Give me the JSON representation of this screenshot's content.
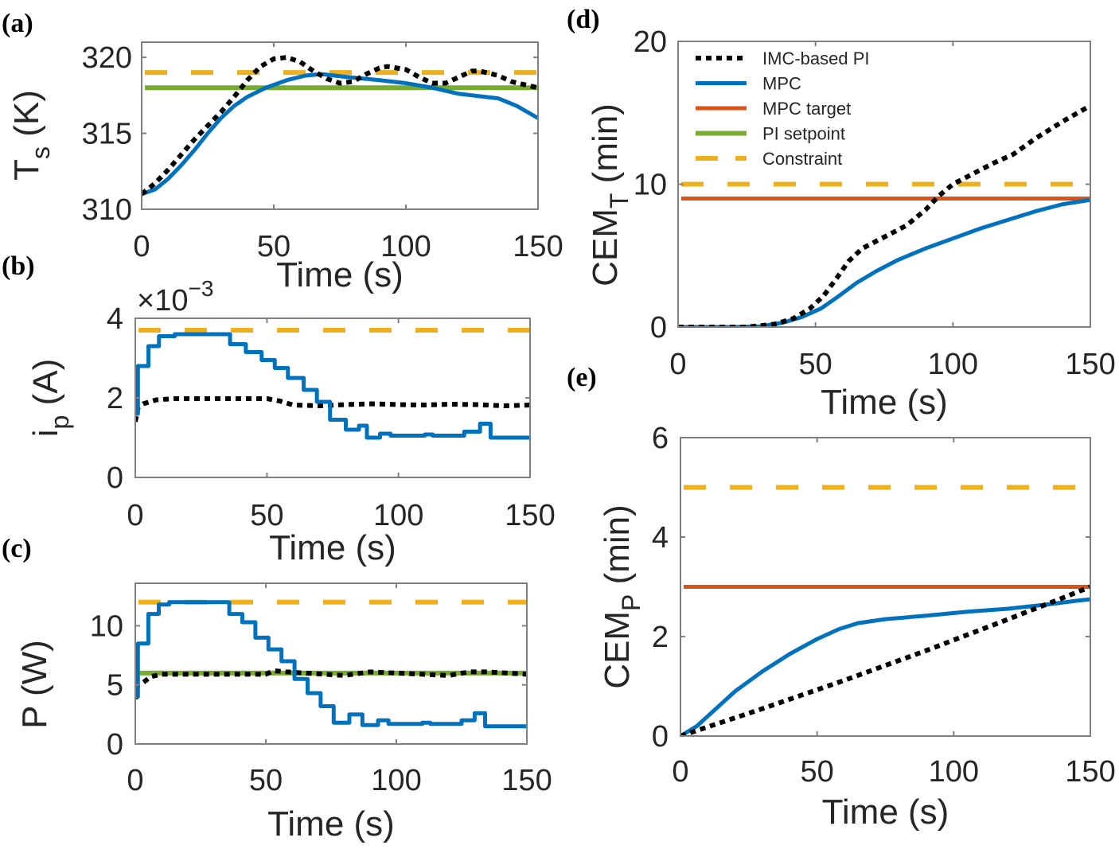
{
  "colors": {
    "mpc": "#0072BD",
    "target": "#D95319",
    "setpoint": "#77AC30",
    "constraint": "#EDB120",
    "pi": "#000000",
    "axis": "#808080"
  },
  "legend": [
    "IMC-based PI",
    "MPC",
    "MPC target",
    "PI setpoint",
    "Constraint"
  ],
  "chart_data": [
    {
      "id": "a",
      "panel_label": "(a)",
      "type": "line",
      "xlabel": "Time (s)",
      "ylabel": {
        "main": "T",
        "sub": "s",
        "rest": " (K)"
      },
      "xlim": [
        0,
        150
      ],
      "ylim": [
        310,
        321
      ],
      "xticks": [
        0,
        50,
        100,
        150
      ],
      "yticks": [
        310,
        315,
        320
      ],
      "series": [
        {
          "name": "Constraint",
          "kind": "hline",
          "value": 319
        },
        {
          "name": "PI setpoint",
          "kind": "hline",
          "value": 318
        },
        {
          "name": "MPC",
          "kind": "line",
          "points": [
            [
              0,
              311
            ],
            [
              5,
              311.3
            ],
            [
              10,
              312
            ],
            [
              15,
              312.9
            ],
            [
              20,
              313.9
            ],
            [
              25,
              315
            ],
            [
              30,
              316
            ],
            [
              35,
              316.8
            ],
            [
              40,
              317.4
            ],
            [
              47,
              318
            ],
            [
              55,
              318.5
            ],
            [
              62,
              318.8
            ],
            [
              68,
              318.9
            ],
            [
              78,
              318.7
            ],
            [
              90,
              318.5
            ],
            [
              100,
              318.3
            ],
            [
              110,
              318
            ],
            [
              120,
              317.6
            ],
            [
              130,
              317.4
            ],
            [
              135,
              317.3
            ],
            [
              142,
              316.8
            ],
            [
              150,
              316
            ]
          ]
        },
        {
          "name": "IMC-based PI",
          "kind": "line",
          "points": [
            [
              0,
              311
            ],
            [
              5,
              311.7
            ],
            [
              10,
              312.6
            ],
            [
              15,
              313.6
            ],
            [
              20,
              314.6
            ],
            [
              25,
              315.5
            ],
            [
              30,
              316.4
            ],
            [
              35,
              317.4
            ],
            [
              40,
              318.5
            ],
            [
              45,
              319.4
            ],
            [
              50,
              319.9
            ],
            [
              55,
              320
            ],
            [
              60,
              319.7
            ],
            [
              65,
              319.1
            ],
            [
              70,
              318.6
            ],
            [
              75,
              318.3
            ],
            [
              80,
              318.4
            ],
            [
              85,
              318.9
            ],
            [
              90,
              319.3
            ],
            [
              93,
              319.4
            ],
            [
              100,
              319.2
            ],
            [
              105,
              318.7
            ],
            [
              110,
              318.3
            ],
            [
              115,
              318.3
            ],
            [
              120,
              318.7
            ],
            [
              125,
              319.1
            ],
            [
              128,
              319.1
            ],
            [
              135,
              318.8
            ],
            [
              140,
              318.4
            ],
            [
              150,
              318
            ]
          ]
        }
      ]
    },
    {
      "id": "b",
      "panel_label": "(b)",
      "type": "line",
      "xlabel": "Time (s)",
      "ylabel": {
        "main": "i",
        "sub": "p",
        "rest": " (A)"
      },
      "multiplier": {
        "base": "×10",
        "exp": "−3"
      },
      "xlim": [
        0,
        150
      ],
      "ylim": [
        0,
        4
      ],
      "xticks": [
        0,
        50,
        100,
        150
      ],
      "yticks": [
        0,
        2,
        4
      ],
      "series": [
        {
          "name": "Constraint",
          "kind": "hline",
          "value": 3.7
        },
        {
          "name": "IMC-based PI",
          "kind": "line",
          "points": [
            [
              0,
              1.4
            ],
            [
              1,
              1.75
            ],
            [
              3,
              1.85
            ],
            [
              8,
              1.95
            ],
            [
              15,
              1.98
            ],
            [
              50,
              1.98
            ],
            [
              55,
              1.92
            ],
            [
              60,
              1.82
            ],
            [
              70,
              1.8
            ],
            [
              80,
              1.83
            ],
            [
              90,
              1.85
            ],
            [
              100,
              1.83
            ],
            [
              110,
              1.82
            ],
            [
              120,
              1.84
            ],
            [
              130,
              1.83
            ],
            [
              140,
              1.8
            ],
            [
              150,
              1.82
            ]
          ]
        },
        {
          "name": "MPC",
          "kind": "step",
          "points": [
            [
              0,
              1.6
            ],
            [
              1,
              2.8
            ],
            [
              5,
              3.3
            ],
            [
              9,
              3.55
            ],
            [
              15,
              3.6
            ],
            [
              25,
              3.6
            ],
            [
              36,
              3.35
            ],
            [
              42,
              3.15
            ],
            [
              48,
              2.95
            ],
            [
              53,
              2.75
            ],
            [
              58,
              2.5
            ],
            [
              64,
              2.2
            ],
            [
              69,
              1.9
            ],
            [
              74,
              1.45
            ],
            [
              80,
              1.2
            ],
            [
              85,
              1.3
            ],
            [
              88,
              1.0
            ],
            [
              93,
              1.1
            ],
            [
              97,
              1.05
            ],
            [
              105,
              1.05
            ],
            [
              110,
              1.08
            ],
            [
              113,
              1.05
            ],
            [
              125,
              1.15
            ],
            [
              131,
              1.35
            ],
            [
              135,
              1.0
            ],
            [
              150,
              0.98
            ]
          ]
        }
      ]
    },
    {
      "id": "c",
      "panel_label": "(c)",
      "type": "line",
      "xlabel": "Time (s)",
      "ylabel": {
        "main": "P (W)",
        "sub": "",
        "rest": ""
      },
      "xlim": [
        0,
        150
      ],
      "ylim": [
        0,
        13.6
      ],
      "xticks": [
        0,
        50,
        100,
        150
      ],
      "yticks": [
        0,
        5,
        10
      ],
      "series": [
        {
          "name": "Constraint",
          "kind": "hline",
          "value": 12
        },
        {
          "name": "PI setpoint",
          "kind": "hline",
          "value": 6
        },
        {
          "name": "IMC-based PI",
          "kind": "line",
          "points": [
            [
              0,
              3.8
            ],
            [
              1,
              5
            ],
            [
              3,
              5.2
            ],
            [
              6,
              5.7
            ],
            [
              10,
              5.9
            ],
            [
              50,
              5.9
            ],
            [
              53,
              6.2
            ],
            [
              58,
              6.1
            ],
            [
              65,
              6
            ],
            [
              80,
              5.8
            ],
            [
              90,
              6.1
            ],
            [
              100,
              6
            ],
            [
              110,
              5.9
            ],
            [
              120,
              5.8
            ],
            [
              128,
              6.1
            ],
            [
              135,
              6.1
            ],
            [
              150,
              5.9
            ]
          ]
        },
        {
          "name": "MPC",
          "kind": "step",
          "points": [
            [
              0,
              4
            ],
            [
              1,
              8.5
            ],
            [
              5,
              11
            ],
            [
              9,
              11.8
            ],
            [
              13,
              12
            ],
            [
              35,
              12
            ],
            [
              36,
              11
            ],
            [
              41,
              10.3
            ],
            [
              46,
              9
            ],
            [
              51,
              8
            ],
            [
              56,
              7
            ],
            [
              61,
              5.5
            ],
            [
              66,
              4.3
            ],
            [
              71,
              3.2
            ],
            [
              76,
              1.8
            ],
            [
              82,
              2.5
            ],
            [
              87,
              1.6
            ],
            [
              93,
              2
            ],
            [
              97,
              1.7
            ],
            [
              110,
              1.8
            ],
            [
              113,
              1.7
            ],
            [
              125,
              2.0
            ],
            [
              130,
              2.6
            ],
            [
              134,
              1.5
            ],
            [
              150,
              1.5
            ]
          ]
        }
      ]
    },
    {
      "id": "d",
      "panel_label": "(d)",
      "type": "line",
      "xlabel": "Time (s)",
      "ylabel": {
        "main": "CEM",
        "sub": "T",
        "rest": " (min)"
      },
      "xlim": [
        0,
        150
      ],
      "ylim": [
        0,
        20
      ],
      "xticks": [
        0,
        50,
        100,
        150
      ],
      "yticks": [
        0,
        10,
        20
      ],
      "legend_position": "top-left",
      "series": [
        {
          "name": "Constraint",
          "kind": "hline",
          "value": 10
        },
        {
          "name": "MPC target",
          "kind": "hline",
          "value": 9
        },
        {
          "name": "MPC",
          "kind": "line",
          "points": [
            [
              0,
              0
            ],
            [
              20,
              0
            ],
            [
              30,
              0.05
            ],
            [
              38,
              0.3
            ],
            [
              45,
              0.7
            ],
            [
              52,
              1.3
            ],
            [
              58,
              2.1
            ],
            [
              65,
              3.1
            ],
            [
              72,
              3.9
            ],
            [
              80,
              4.7
            ],
            [
              90,
              5.5
            ],
            [
              100,
              6.2
            ],
            [
              110,
              6.9
            ],
            [
              120,
              7.5
            ],
            [
              130,
              8.1
            ],
            [
              140,
              8.6
            ],
            [
              150,
              8.9
            ]
          ]
        },
        {
          "name": "IMC-based PI",
          "kind": "line",
          "points": [
            [
              0,
              0
            ],
            [
              25,
              0
            ],
            [
              35,
              0.2
            ],
            [
              42,
              0.6
            ],
            [
              48,
              1.3
            ],
            [
              53,
              2.2
            ],
            [
              58,
              3.5
            ],
            [
              62,
              4.6
            ],
            [
              67,
              5.5
            ],
            [
              75,
              6.3
            ],
            [
              83,
              7.1
            ],
            [
              90,
              8.2
            ],
            [
              95,
              9.2
            ],
            [
              100,
              10
            ],
            [
              108,
              10.8
            ],
            [
              115,
              11.5
            ],
            [
              122,
              12.1
            ],
            [
              130,
              13.2
            ],
            [
              140,
              14.4
            ],
            [
              150,
              15.5
            ]
          ]
        }
      ]
    },
    {
      "id": "e",
      "panel_label": "(e)",
      "type": "line",
      "xlabel": "Time (s)",
      "ylabel": {
        "main": "CEM",
        "sub": "P",
        "rest": " (min)"
      },
      "xlim": [
        0,
        150
      ],
      "ylim": [
        0,
        6
      ],
      "xticks": [
        0,
        50,
        100,
        150
      ],
      "yticks": [
        0,
        2,
        4,
        6
      ],
      "series": [
        {
          "name": "Constraint",
          "kind": "hline",
          "value": 5
        },
        {
          "name": "MPC target",
          "kind": "hline",
          "value": 3
        },
        {
          "name": "MPC",
          "kind": "line",
          "points": [
            [
              0,
              0
            ],
            [
              6,
              0.2
            ],
            [
              12,
              0.5
            ],
            [
              20,
              0.9
            ],
            [
              30,
              1.3
            ],
            [
              40,
              1.65
            ],
            [
              50,
              1.95
            ],
            [
              58,
              2.15
            ],
            [
              65,
              2.27
            ],
            [
              75,
              2.35
            ],
            [
              90,
              2.42
            ],
            [
              105,
              2.5
            ],
            [
              120,
              2.56
            ],
            [
              135,
              2.65
            ],
            [
              145,
              2.72
            ],
            [
              150,
              2.75
            ]
          ]
        },
        {
          "name": "IMC-based PI",
          "kind": "line",
          "points": [
            [
              0,
              0
            ],
            [
              30,
              0.55
            ],
            [
              60,
              1.12
            ],
            [
              90,
              1.72
            ],
            [
              120,
              2.35
            ],
            [
              140,
              2.78
            ],
            [
              150,
              3.0
            ]
          ]
        }
      ]
    }
  ]
}
